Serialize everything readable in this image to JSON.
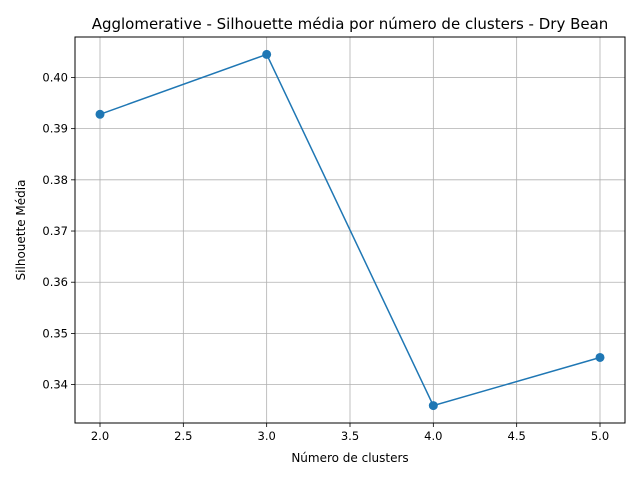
{
  "chart_data": {
    "type": "line",
    "title": "Agglomerative - Silhouette média por número de clusters - Dry Bean",
    "xlabel": "Número de clusters",
    "ylabel": "Silhouette Média",
    "x": [
      2,
      3,
      4,
      5
    ],
    "series": [
      {
        "values": [
          0.3928,
          0.4045,
          0.3359,
          0.3453
        ],
        "color": "#1f77b4",
        "marker": "circle"
      }
    ],
    "xlim": [
      1.85,
      5.15
    ],
    "ylim": [
      0.3325,
      0.4079
    ],
    "xticks": [
      "2.0",
      "2.5",
      "3.0",
      "3.5",
      "4.0",
      "4.5",
      "5.0"
    ],
    "yticks": [
      "0.34",
      "0.35",
      "0.36",
      "0.37",
      "0.38",
      "0.39",
      "0.40"
    ],
    "grid": true
  }
}
